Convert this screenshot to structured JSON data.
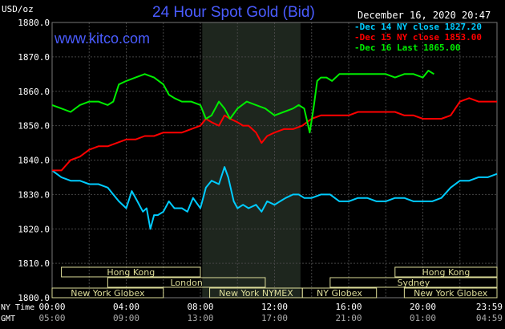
{
  "header": {
    "title": "24 Hour Spot Gold (Bid)",
    "watermark": "www.kitco.com",
    "timestamp": "December 16, 2020 20:47",
    "y_unit": "USD/oz"
  },
  "legend": [
    {
      "text": "Dec 14 NY close 1827.20",
      "color": "#00ccff"
    },
    {
      "text": "Dec 15 NY close 1853.00",
      "color": "#ff0000"
    },
    {
      "text": "Dec 16 Last 1865.00",
      "color": "#00ee00"
    }
  ],
  "sessions": [
    {
      "name": "Hong Kong",
      "row": 0,
      "start": 0.5,
      "end": 8.0
    },
    {
      "name": "Hong Kong",
      "row": 0,
      "start": 18.5,
      "end": 24.0
    },
    {
      "name": "London",
      "row": 1,
      "start": 3.0,
      "end": 11.5
    },
    {
      "name": "Sydney",
      "row": 1,
      "start": 15.0,
      "end": 24.0
    },
    {
      "name": "New York Globex",
      "row": 2,
      "start": 0.0,
      "end": 6.0
    },
    {
      "name": "New York NYMEX",
      "row": 2,
      "start": 8.5,
      "end": 13.5
    },
    {
      "name": "NY Globex",
      "row": 2,
      "start": 13.5,
      "end": 17.5
    },
    {
      "name": "New York Globex",
      "row": 2,
      "start": 19.0,
      "end": 24.0
    }
  ],
  "x_axis": {
    "ny_label": "NY Time",
    "gmt_label": "GMT",
    "ny_ticks": [
      "00:00",
      "04:00",
      "08:00",
      "12:00",
      "16:00",
      "20:00",
      "23:59"
    ],
    "gmt_ticks": [
      "05:00",
      "09:00",
      "13:00",
      "17:00",
      "21:00",
      "01:00",
      "04:59"
    ]
  },
  "colors": {
    "background": "#000000",
    "grid": "#444444",
    "highlight": "#1e261e",
    "session_text": "#dddd99",
    "session_border": "#dddd99"
  },
  "chart_data": {
    "type": "line",
    "title": "24 Hour Spot Gold (Bid)",
    "ylabel": "USD/oz",
    "ylim": [
      1800,
      1880
    ],
    "yticks": [
      "1800.0",
      "1810.0",
      "1820.0",
      "1830.0",
      "1840.0",
      "1850.0",
      "1860.0",
      "1870.0",
      "1880.0"
    ],
    "xlim": [
      0,
      24
    ],
    "highlight_range": [
      8.1,
      13.4
    ],
    "series": [
      {
        "name": "Dec 14 NY close 1827.20",
        "color": "#00ccff",
        "x": [
          0,
          0.5,
          1,
          1.5,
          2,
          2.5,
          3,
          3.3,
          3.6,
          4,
          4.3,
          4.6,
          4.9,
          5.1,
          5.3,
          5.5,
          5.7,
          6,
          6.3,
          6.6,
          7,
          7.3,
          7.6,
          8,
          8.3,
          8.6,
          9,
          9.3,
          9.5,
          9.8,
          10,
          10.3,
          10.6,
          11,
          11.3,
          11.6,
          12,
          12.3,
          12.6,
          13,
          13.3,
          13.6,
          14,
          14.5,
          15,
          15.5,
          16,
          16.5,
          17,
          17.5,
          18,
          18.5,
          19,
          19.5,
          20,
          20.5,
          21,
          21.5,
          22,
          22.5,
          23,
          23.5,
          24
        ],
        "y": [
          1837,
          1835,
          1834,
          1834,
          1833,
          1833,
          1832,
          1830,
          1828,
          1826,
          1831,
          1828,
          1825,
          1826,
          1820,
          1824,
          1824,
          1825,
          1828,
          1826,
          1826,
          1825,
          1829,
          1826,
          1832,
          1834,
          1833,
          1838,
          1835,
          1828,
          1826,
          1827,
          1826,
          1827,
          1825,
          1828,
          1827,
          1828,
          1829,
          1830,
          1830,
          1829,
          1829,
          1830,
          1830,
          1828,
          1828,
          1829,
          1829,
          1828,
          1828,
          1829,
          1829,
          1828,
          1828,
          1828,
          1829,
          1832,
          1834,
          1834,
          1835,
          1835,
          1836
        ]
      },
      {
        "name": "Dec 15 NY close 1853.00",
        "color": "#ff0000",
        "x": [
          0,
          0.5,
          1,
          1.5,
          2,
          2.5,
          3,
          3.5,
          4,
          4.5,
          5,
          5.5,
          6,
          6.5,
          7,
          7.5,
          8,
          8.3,
          8.6,
          9,
          9.3,
          9.6,
          10,
          10.3,
          10.6,
          11,
          11.3,
          11.6,
          12,
          12.5,
          13,
          13.5,
          14,
          14.5,
          15,
          15.5,
          16,
          16.5,
          17,
          17.5,
          18,
          18.5,
          19,
          19.5,
          20,
          20.5,
          21,
          21.5,
          22,
          22.5,
          23,
          23.5,
          24
        ],
        "y": [
          1837,
          1837,
          1840,
          1841,
          1843,
          1844,
          1844,
          1845,
          1846,
          1846,
          1847,
          1847,
          1848,
          1848,
          1848,
          1849,
          1850,
          1852,
          1851,
          1850,
          1853,
          1852,
          1851,
          1850,
          1850,
          1848,
          1845,
          1847,
          1848,
          1849,
          1849,
          1850,
          1852,
          1853,
          1853,
          1853,
          1853,
          1854,
          1854,
          1854,
          1854,
          1854,
          1853,
          1853,
          1852,
          1852,
          1852,
          1853,
          1857,
          1858,
          1857,
          1857,
          1857
        ]
      },
      {
        "name": "Dec 16 Last 1865.00",
        "color": "#00ee00",
        "x": [
          0,
          0.5,
          1,
          1.5,
          2,
          2.5,
          3,
          3.3,
          3.6,
          4,
          4.5,
          5,
          5.5,
          6,
          6.3,
          6.6,
          7,
          7.5,
          8,
          8.3,
          8.6,
          9,
          9.3,
          9.6,
          10,
          10.5,
          11,
          11.5,
          12,
          12.5,
          13,
          13.3,
          13.6,
          13.9,
          14.1,
          14.3,
          14.5,
          14.8,
          15.1,
          15.5,
          16,
          16.5,
          17,
          17.5,
          18,
          18.5,
          19,
          19.5,
          20,
          20.3,
          20.6
        ],
        "y": [
          1856,
          1855,
          1854,
          1856,
          1857,
          1857,
          1856,
          1857,
          1862,
          1863,
          1864,
          1865,
          1864,
          1862,
          1859,
          1858,
          1857,
          1857,
          1856,
          1852,
          1853,
          1857,
          1855,
          1852,
          1855,
          1857,
          1856,
          1855,
          1853,
          1854,
          1855,
          1856,
          1855,
          1848,
          1855,
          1863,
          1864,
          1864,
          1863,
          1865,
          1865,
          1865,
          1865,
          1865,
          1865,
          1864,
          1865,
          1865,
          1864,
          1866,
          1865
        ]
      }
    ]
  }
}
